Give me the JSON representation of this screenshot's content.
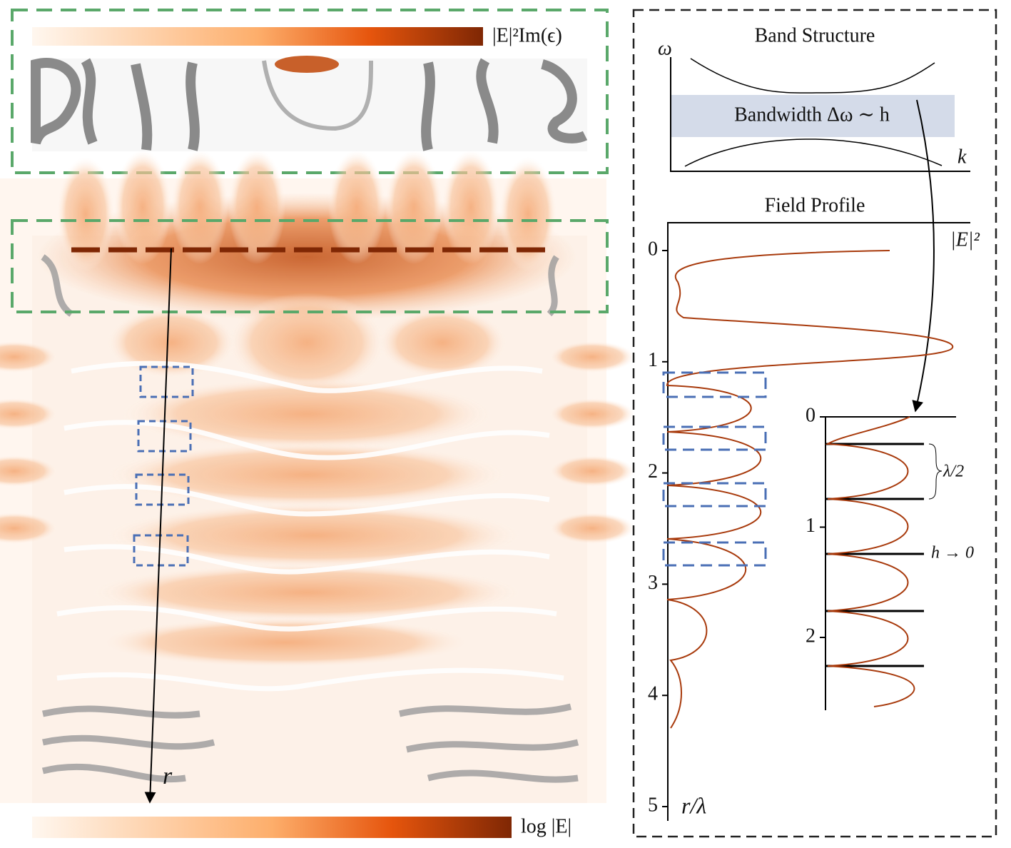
{
  "top_panel": {
    "colorbar_label": "|E|²Im(ϵ)"
  },
  "main_panel": {
    "axis_label": "r",
    "colorbar_label": "log |E|"
  },
  "band_structure": {
    "title": "Band Structure",
    "y_label": "ω",
    "x_label": "k",
    "band_label": "Bandwidth Δω ∼ h"
  },
  "field_profile": {
    "title": "Field Profile",
    "x_label": "|E|²",
    "y_label": "r/λ",
    "yticks": [
      0,
      1,
      2,
      3,
      4,
      5
    ]
  },
  "inset": {
    "yticks": [
      0,
      1,
      2
    ],
    "spacing_label": "λ/2",
    "limit_label": "h → 0"
  }
}
